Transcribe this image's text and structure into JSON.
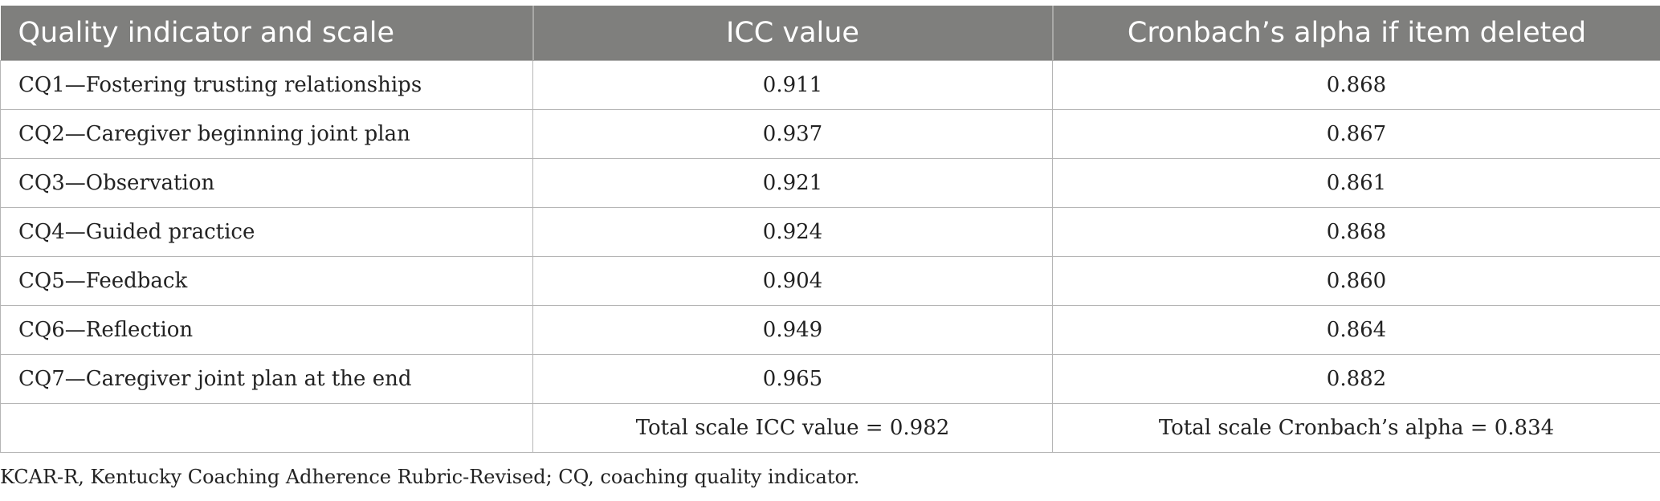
{
  "table": {
    "headers": [
      "Quality indicator and scale",
      "ICC value",
      "Cronbach’s alpha if item deleted"
    ],
    "rows": [
      {
        "indicator": "CQ1—Fostering trusting relationships",
        "icc": "0.911",
        "alpha": "0.868"
      },
      {
        "indicator": "CQ2—Caregiver beginning joint plan",
        "icc": "0.937",
        "alpha": "0.867"
      },
      {
        "indicator": "CQ3—Observation",
        "icc": "0.921",
        "alpha": "0.861"
      },
      {
        "indicator": "CQ4—Guided practice",
        "icc": "0.924",
        "alpha": "0.868"
      },
      {
        "indicator": "CQ5—Feedback",
        "icc": "0.904",
        "alpha": "0.860"
      },
      {
        "indicator": "CQ6—Reflection",
        "icc": "0.949",
        "alpha": "0.864"
      },
      {
        "indicator": "CQ7—Caregiver joint plan at the end",
        "icc": "0.965",
        "alpha": "0.882"
      }
    ],
    "total": {
      "indicator": "",
      "icc": "Total scale ICC value = 0.982",
      "alpha": "Total scale Cronbach’s alpha = 0.834"
    }
  },
  "footnote": "KCAR-R, Kentucky Coaching Adherence Rubric-Revised; CQ, coaching quality indicator.",
  "colors": {
    "header_bg": "#7f7f7d",
    "header_text": "#ffffff",
    "grid": "#b5b5b5"
  }
}
